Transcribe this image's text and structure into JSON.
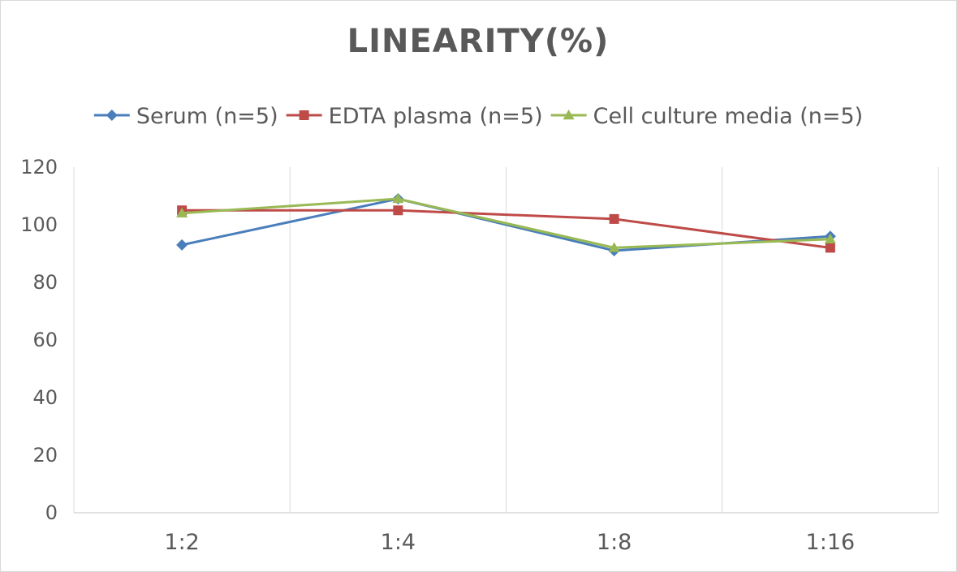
{
  "chart_data": {
    "type": "line",
    "title": "LINEARITY(%)",
    "xlabel": "",
    "ylabel": "",
    "categories": [
      "1:2",
      "1:4",
      "1:8",
      "1:16"
    ],
    "ylim": [
      0,
      120
    ],
    "yticks": [
      0,
      20,
      40,
      60,
      80,
      100,
      120
    ],
    "grid": "vertical",
    "legend_position": "top",
    "series": [
      {
        "name": "Serum (n=5)",
        "values": [
          93,
          109,
          91,
          96
        ],
        "color": "#4a7ebb",
        "marker": "diamond"
      },
      {
        "name": "EDTA plasma (n=5)",
        "values": [
          105,
          105,
          102,
          92
        ],
        "color": "#be4b48",
        "marker": "square"
      },
      {
        "name": "Cell culture media (n=5)",
        "values": [
          104,
          109,
          92,
          95
        ],
        "color": "#98b954",
        "marker": "triangle"
      }
    ]
  }
}
